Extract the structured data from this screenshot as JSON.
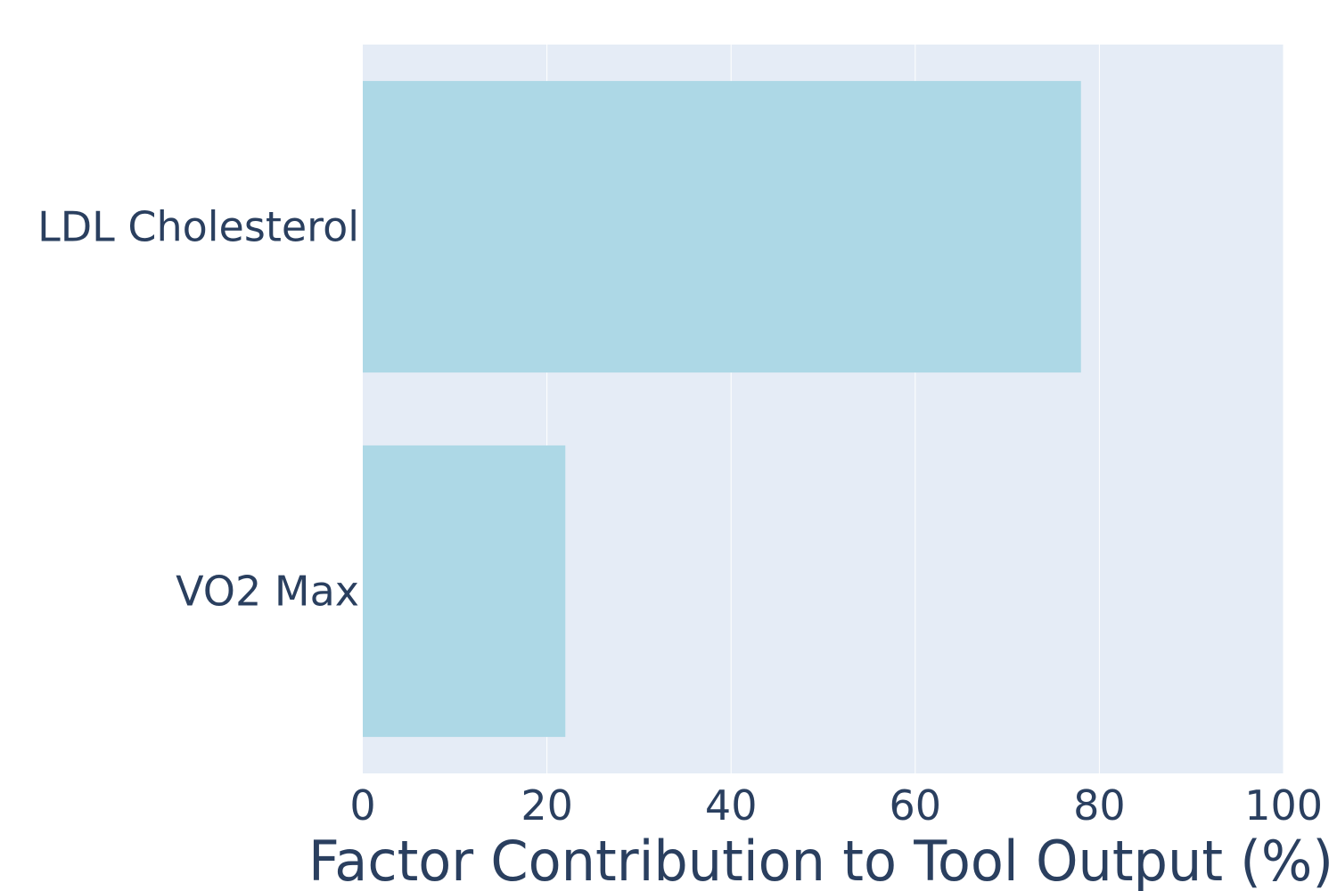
{
  "chart_data": {
    "type": "bar",
    "orientation": "horizontal",
    "categories": [
      "LDL Cholesterol",
      "VO2 Max"
    ],
    "values": [
      78,
      22
    ],
    "xlabel": "Factor Contribution to Tool Output (%)",
    "ylabel": "",
    "xlim": [
      0,
      100
    ],
    "xticks": [
      0,
      20,
      40,
      60,
      80,
      100
    ],
    "grid": true,
    "legend": "none",
    "colors": {
      "bar": "#add8e6",
      "plot_background": "#e5ecf6",
      "gridline": "#ffffff",
      "text": "#2a3f5f"
    }
  }
}
